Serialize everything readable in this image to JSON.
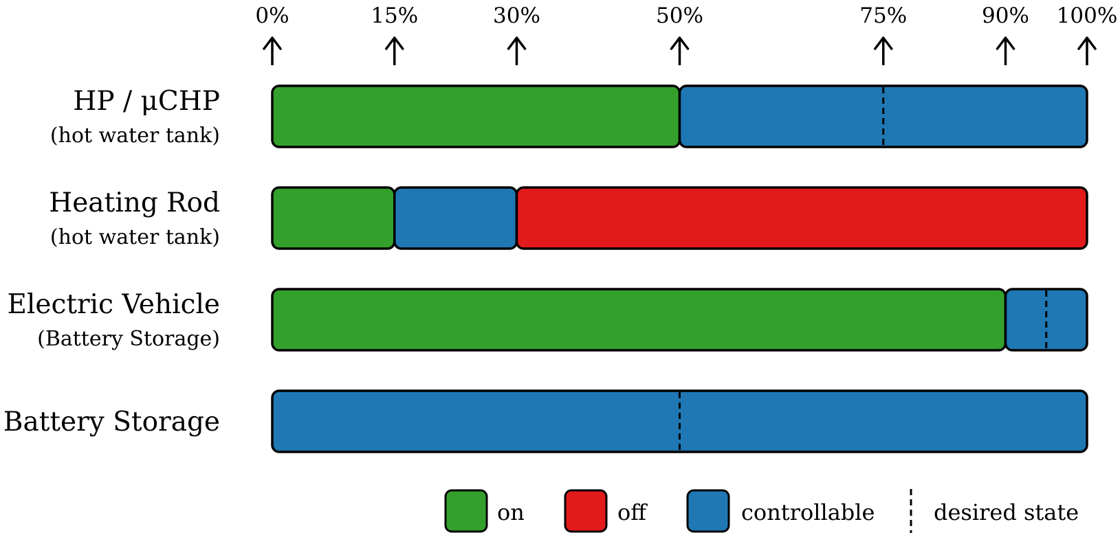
{
  "ticks": [
    {
      "value": 0,
      "label": "0%"
    },
    {
      "value": 15,
      "label": "15%"
    },
    {
      "value": 30,
      "label": "30%"
    },
    {
      "value": 50,
      "label": "50%"
    },
    {
      "value": 75,
      "label": "75%"
    },
    {
      "value": 90,
      "label": "90%"
    },
    {
      "value": 100,
      "label": "100%"
    }
  ],
  "colors": {
    "on": "#33a02c",
    "off": "#e31a1c",
    "controllable": "#1f78b4",
    "outline": "#000000"
  },
  "rows": [
    {
      "title": "HP / μCHP",
      "subtitle": "(hot water tank)",
      "segments": [
        {
          "state": "on",
          "start": 0,
          "end": 50
        },
        {
          "state": "controllable",
          "start": 50,
          "end": 100
        }
      ],
      "desired": 75
    },
    {
      "title": "Heating Rod",
      "subtitle": "(hot water tank)",
      "segments": [
        {
          "state": "on",
          "start": 0,
          "end": 15
        },
        {
          "state": "controllable",
          "start": 15,
          "end": 30
        },
        {
          "state": "off",
          "start": 30,
          "end": 100
        }
      ],
      "desired": null
    },
    {
      "title": "Electric Vehicle",
      "subtitle": "(Battery Storage)",
      "segments": [
        {
          "state": "on",
          "start": 0,
          "end": 90
        },
        {
          "state": "controllable",
          "start": 90,
          "end": 100
        }
      ],
      "desired": 95
    },
    {
      "title": "Battery Storage",
      "subtitle": "",
      "segments": [
        {
          "state": "controllable",
          "start": 0,
          "end": 100
        }
      ],
      "desired": 50
    }
  ],
  "legend": {
    "on": "on",
    "off": "off",
    "controllable": "controllable",
    "desired": "desired state"
  }
}
